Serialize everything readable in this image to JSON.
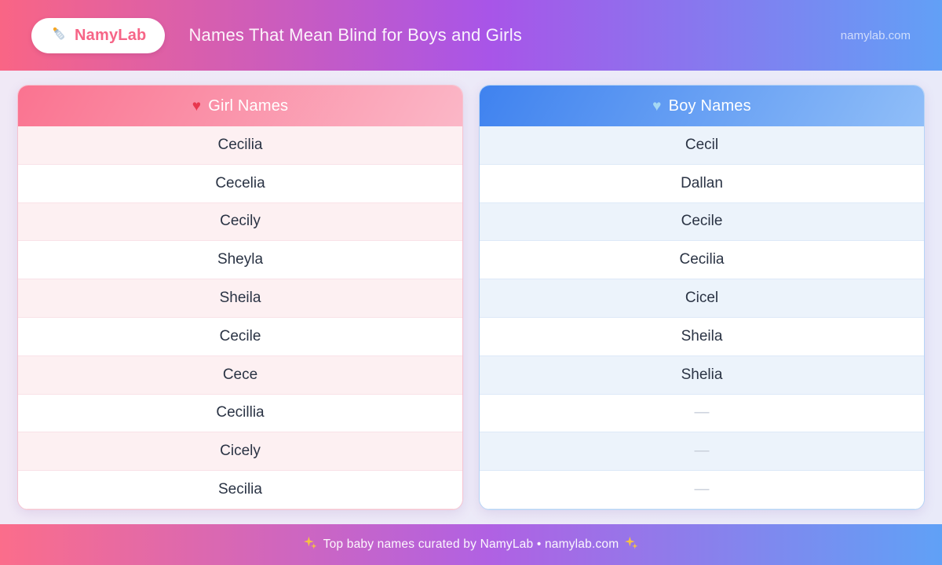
{
  "header": {
    "logo_text": "NamyLab",
    "title": "Names That Mean Blind for Boys and Girls",
    "site": "namylab.com"
  },
  "icons": {
    "logo": "baby-bottle-icon",
    "girl_header": "red-heart-icon",
    "boy_header": "light-blue-heart-icon",
    "footer": "sparkles-icon"
  },
  "colors": {
    "header_gradient_left": "#f96585",
    "header_gradient_mid": "#a855e8",
    "header_gradient_right": "#62a0f6",
    "girl_header_left": "#fa7390",
    "girl_header_right": "#fbb7c7",
    "boy_header_left": "#3f82ef",
    "boy_header_right": "#90bef8",
    "girl_row_tint": "#fdf0f2",
    "boy_row_tint": "#ecf3fb",
    "girl_heart": "#e8374f",
    "boy_heart": "#a5d8f3",
    "name_text": "#2a3344",
    "empty_dash": "#c3cad6"
  },
  "tables": {
    "girls": {
      "title": "Girl Names",
      "heart": "♥",
      "names": [
        "Cecilia",
        "Cecelia",
        "Cecily",
        "Sheyla",
        "Sheila",
        "Cecile",
        "Cece",
        "Cecillia",
        "Cicely",
        "Secilia"
      ]
    },
    "boys": {
      "title": "Boy Names",
      "heart": "♥",
      "names": [
        "Cecil",
        "Dallan",
        "Cecile",
        "Cecilia",
        "Cicel",
        "Sheila",
        "Shelia",
        "—",
        "—",
        "—"
      ]
    }
  },
  "footer": {
    "text": "Top baby names curated by NamyLab • namylab.com"
  }
}
